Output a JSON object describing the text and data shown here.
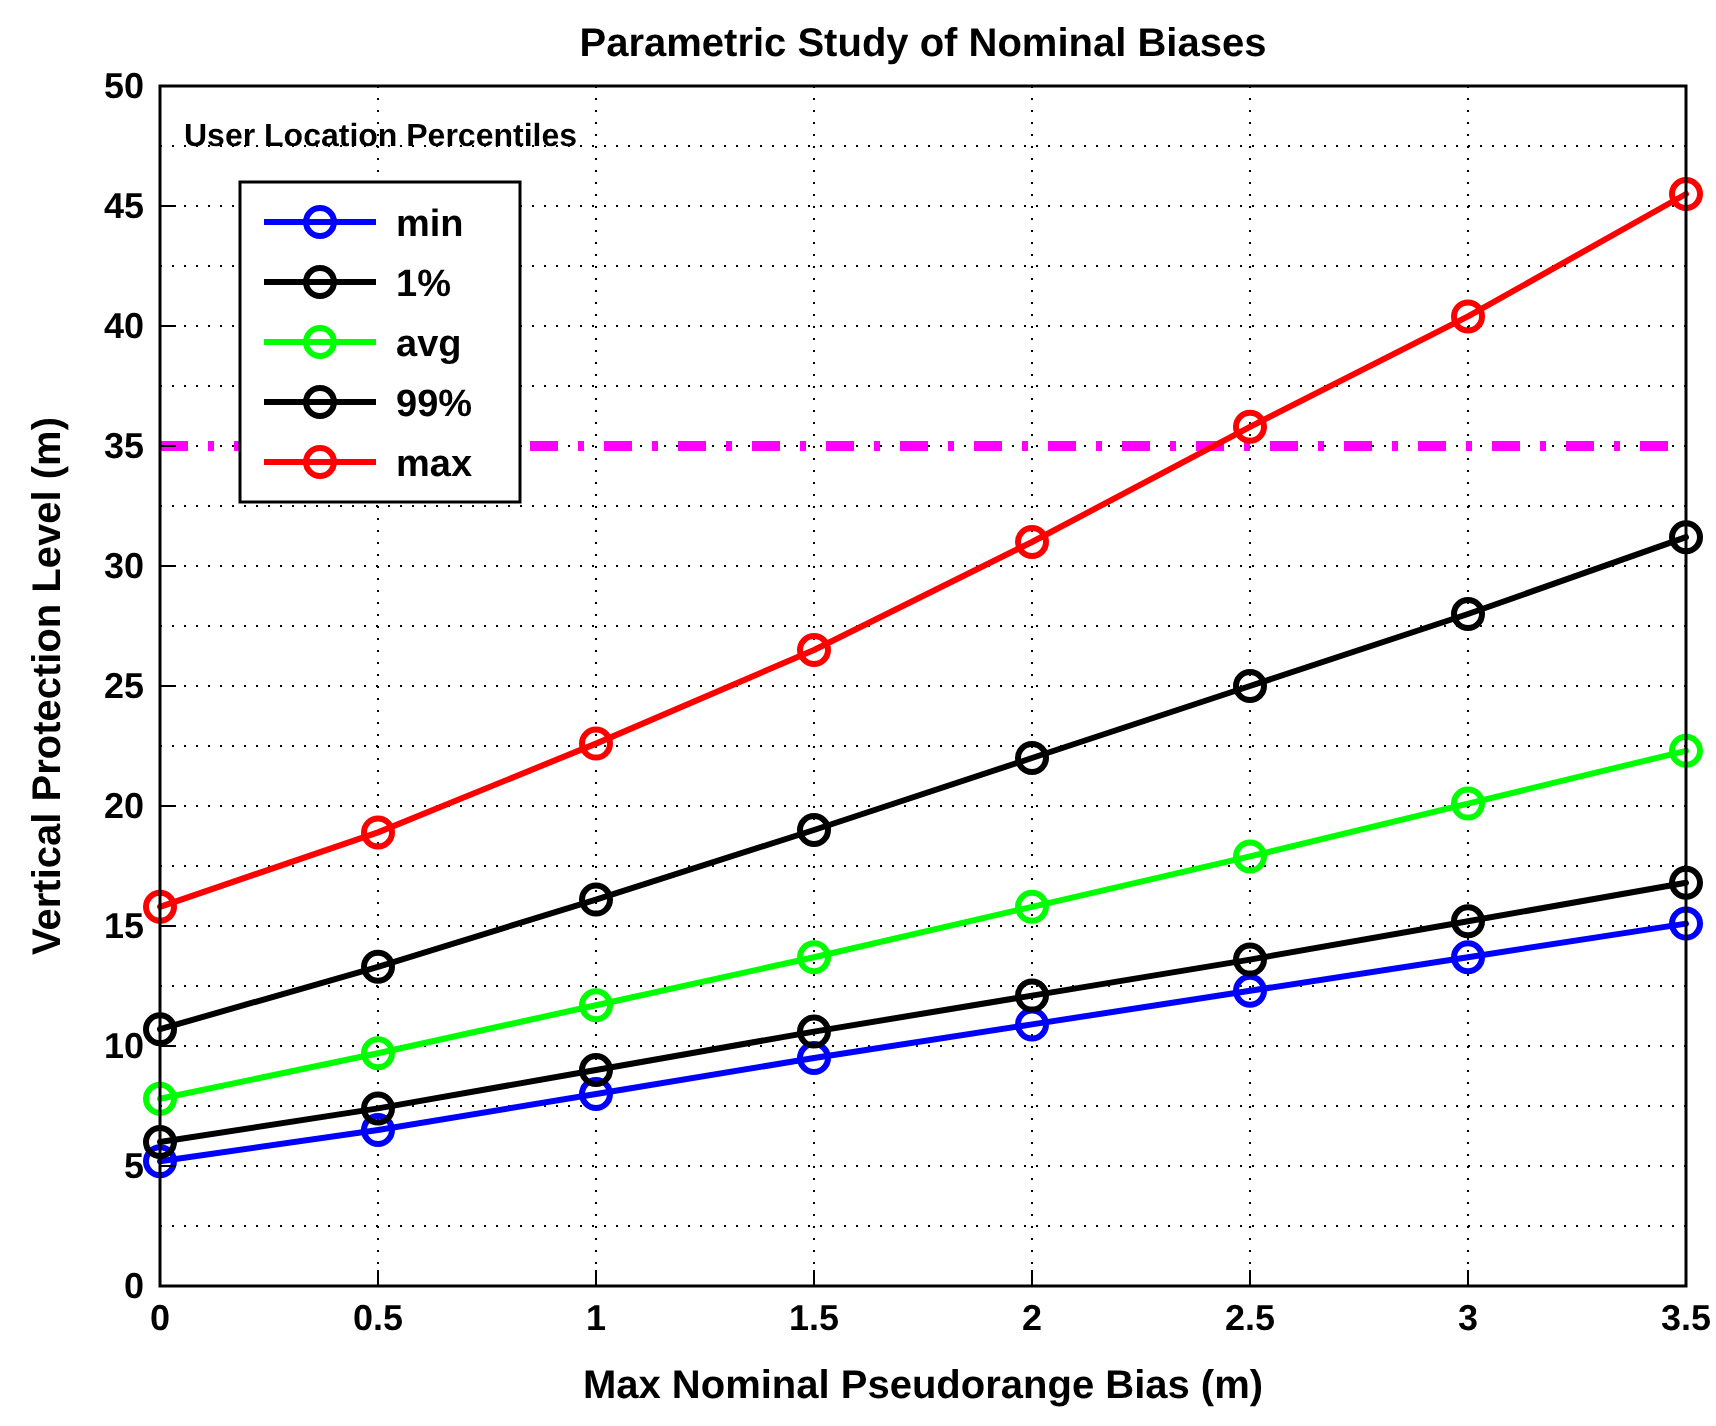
{
  "chart_data": {
    "type": "line",
    "title": "Parametric Study of Nominal Biases",
    "xlabel": "Max Nominal Pseudorange Bias (m)",
    "ylabel": "Vertical Protection Level (m)",
    "legend_title": "User Location Percentiles",
    "legend": "top left",
    "grid": true,
    "marker": "circle",
    "line_style": "solid",
    "x": [
      0,
      0.5,
      1,
      1.5,
      2,
      2.5,
      3,
      3.5
    ],
    "xlim": [
      0,
      3.5
    ],
    "xticks": [
      0,
      0.5,
      1,
      1.5,
      2,
      2.5,
      3,
      3.5
    ],
    "ylim": [
      0,
      50
    ],
    "yticks": [
      0,
      {
        "value": 2.5,
        "label": null
      },
      5,
      {
        "value": 7.5,
        "label": null
      },
      10,
      {
        "value": 12.5,
        "label": null
      },
      15,
      {
        "value": 17.5,
        "label": null
      },
      20,
      {
        "value": 22.5,
        "label": null
      },
      25,
      {
        "value": 27.5,
        "label": null
      },
      30,
      {
        "value": 32.5,
        "label": null
      },
      35,
      {
        "value": 37.5,
        "label": null
      },
      40,
      {
        "value": 42.5,
        "label": null
      },
      45,
      {
        "value": 47.5,
        "label": null
      },
      50
    ],
    "series": [
      {
        "name": "min",
        "color": "#0000ff",
        "values": [
          5.2,
          6.5,
          8.0,
          9.5,
          10.9,
          12.3,
          13.7,
          15.1
        ]
      },
      {
        "name": "1%",
        "color": "#000000",
        "values": [
          6.0,
          7.4,
          9.0,
          10.6,
          12.1,
          13.6,
          15.2,
          16.8
        ]
      },
      {
        "name": "avg",
        "color": "#00ff00",
        "values": [
          7.8,
          9.7,
          11.7,
          13.7,
          15.8,
          17.9,
          20.1,
          22.3
        ]
      },
      {
        "name": "99%",
        "color": "#000000",
        "values": [
          10.7,
          13.3,
          16.1,
          19.0,
          22.0,
          25.0,
          28.0,
          31.2
        ]
      },
      {
        "name": "max",
        "color": "#ff0000",
        "values": [
          15.8,
          18.9,
          22.6,
          26.5,
          31.0,
          35.8,
          40.4,
          45.5
        ]
      }
    ],
    "ref_lines": [
      {
        "axis": "y",
        "value": 35,
        "color": "#ff00ff",
        "line_style": "dashdot"
      }
    ]
  }
}
